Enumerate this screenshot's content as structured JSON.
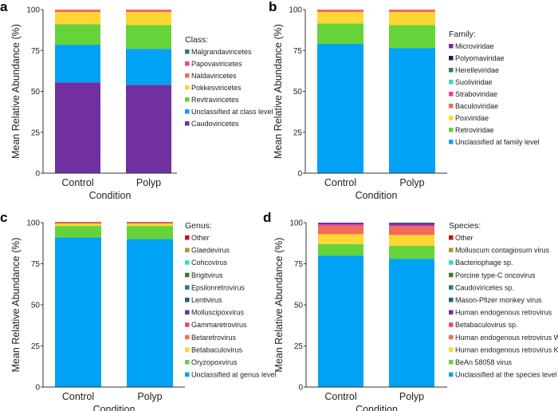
{
  "chart_data": [
    {
      "panel_label": "a",
      "type": "bar",
      "stacked": true,
      "xlabel": "Condition",
      "ylabel": "Mean Relative Abundance (%)",
      "ylim": [
        0,
        100
      ],
      "yticks": [
        0,
        25,
        50,
        75,
        100
      ],
      "categories": [
        "Control",
        "Polyp"
      ],
      "legend_title": "Class:",
      "legend_placement": "right",
      "series": [
        {
          "name": "Caudoviricetes",
          "color": "#7030a0",
          "values": [
            55.5,
            54
          ]
        },
        {
          "name": "Unclassified at class level",
          "color": "#00a2f5",
          "values": [
            23,
            22
          ]
        },
        {
          "name": "Revtraviricetes",
          "color": "#66d33a",
          "values": [
            12.5,
            14.5
          ]
        },
        {
          "name": "Pokkesviricetes",
          "color": "#ffd633",
          "values": [
            7.5,
            8
          ]
        },
        {
          "name": "Naldaviricetes",
          "color": "#f26b5b",
          "values": [
            1.5,
            1.5
          ]
        },
        {
          "name": "Papovaviricetes",
          "color": "#e84393",
          "values": [
            0,
            0
          ]
        },
        {
          "name": "Malgrandaviricetes",
          "color": "#2e7d6b",
          "values": [
            0,
            0
          ]
        }
      ]
    },
    {
      "panel_label": "b",
      "type": "bar",
      "stacked": true,
      "xlabel": "Condition",
      "ylabel": "Mean Relative Abundance (%)",
      "ylim": [
        0,
        100
      ],
      "yticks": [
        0,
        25,
        50,
        75,
        100
      ],
      "categories": [
        "Control",
        "Polyp"
      ],
      "legend_title": "Family:",
      "legend_placement": "right",
      "series": [
        {
          "name": "Unclassified at family level",
          "color": "#00a2f5",
          "values": [
            79,
            76.5
          ]
        },
        {
          "name": "Retroviridae",
          "color": "#66d33a",
          "values": [
            12.5,
            14
          ]
        },
        {
          "name": "Poxviridae",
          "color": "#ffd633",
          "values": [
            7,
            8
          ]
        },
        {
          "name": "Baculoviridae",
          "color": "#f26b5b",
          "values": [
            1.5,
            1.5
          ]
        },
        {
          "name": "Straboviridae",
          "color": "#e84393",
          "values": [
            0,
            0
          ]
        },
        {
          "name": "Suoliviridae",
          "color": "#3fd6c6",
          "values": [
            0,
            0
          ]
        },
        {
          "name": "Herelleviridae",
          "color": "#2e7d6b",
          "values": [
            0,
            0
          ]
        },
        {
          "name": "Polyomaviridae",
          "color": "#1a1f4d",
          "values": [
            0,
            0
          ]
        },
        {
          "name": "Microviridae",
          "color": "#7030a0",
          "values": [
            0,
            0
          ]
        }
      ]
    },
    {
      "panel_label": "c",
      "type": "bar",
      "stacked": true,
      "xlabel": "Condition",
      "ylabel": "Mean Relative Abundance (%)",
      "ylim": [
        0,
        100
      ],
      "yticks": [
        0,
        25,
        50,
        75,
        100
      ],
      "categories": [
        "Control",
        "Polyp"
      ],
      "legend_title": "Genus:",
      "legend_placement": "right",
      "series": [
        {
          "name": "Unclassified at genus level",
          "color": "#00a2f5",
          "values": [
            91,
            90
          ]
        },
        {
          "name": "Oryzopoxvirus",
          "color": "#66d33a",
          "values": [
            7,
            8
          ]
        },
        {
          "name": "Betabaculovirus",
          "color": "#ffd633",
          "values": [
            1.5,
            1.5
          ]
        },
        {
          "name": "Betaretrovirus",
          "color": "#f26b5b",
          "values": [
            0.3,
            0.3
          ]
        },
        {
          "name": "Gammaretrovirus",
          "color": "#e84393",
          "values": [
            0,
            0
          ]
        },
        {
          "name": "Molluscipoxvirus",
          "color": "#7030a0",
          "values": [
            0,
            0
          ]
        },
        {
          "name": "Lentivirus",
          "color": "#1f5f7a",
          "values": [
            0,
            0
          ]
        },
        {
          "name": "Epsilonretrovirus",
          "color": "#2e7d6b",
          "values": [
            0,
            0
          ]
        },
        {
          "name": "Brigitvirus",
          "color": "#3a7a2a",
          "values": [
            0,
            0
          ]
        },
        {
          "name": "Cohcovirus",
          "color": "#3fd6c6",
          "values": [
            0,
            0
          ]
        },
        {
          "name": "Glaedevirus",
          "color": "#b8962a",
          "values": [
            0,
            0
          ]
        },
        {
          "name": "Other",
          "color": "#c0141e",
          "values": [
            0.5,
            0.5
          ]
        }
      ]
    },
    {
      "panel_label": "d",
      "type": "bar",
      "stacked": true,
      "xlabel": "Condition",
      "ylabel": "Mean Relative Abundance (%)",
      "ylim": [
        0,
        100
      ],
      "yticks": [
        0,
        25,
        50,
        75,
        100
      ],
      "categories": [
        "Control",
        "Polyp"
      ],
      "legend_title": "Species:",
      "legend_placement": "right",
      "series": [
        {
          "name": "Unclassified at the species level",
          "color": "#00a2f5",
          "values": [
            80,
            78
          ]
        },
        {
          "name": "BeAn 58058 virus",
          "color": "#66d33a",
          "values": [
            7,
            8
          ]
        },
        {
          "name": "Human endogenous retrovirus K",
          "color": "#ffd633",
          "values": [
            6,
            6.5
          ]
        },
        {
          "name": "Human endogenous retrovirus W",
          "color": "#f26b5b",
          "values": [
            5,
            5
          ]
        },
        {
          "name": "Betabaculovirus sp.",
          "color": "#e84393",
          "values": [
            1,
            1
          ]
        },
        {
          "name": "Human endogenous retrovirus",
          "color": "#7030a0",
          "values": [
            1,
            1
          ]
        },
        {
          "name": "Mason-Pfizer monkey virus",
          "color": "#1f5f7a",
          "values": [
            0,
            0.5
          ]
        },
        {
          "name": "Caudoviricetes sp.",
          "color": "#2e7d6b",
          "values": [
            0,
            0
          ]
        },
        {
          "name": "Porcine type-C oncovirus",
          "color": "#3a7a2a",
          "values": [
            0,
            0
          ]
        },
        {
          "name": "Bacteriophage sp.",
          "color": "#3fd6c6",
          "values": [
            0,
            0
          ]
        },
        {
          "name": "Molluscum contagiosum virus",
          "color": "#b8962a",
          "values": [
            0,
            0
          ]
        },
        {
          "name": "Other",
          "color": "#c0141e",
          "values": [
            0,
            0
          ]
        }
      ]
    }
  ]
}
